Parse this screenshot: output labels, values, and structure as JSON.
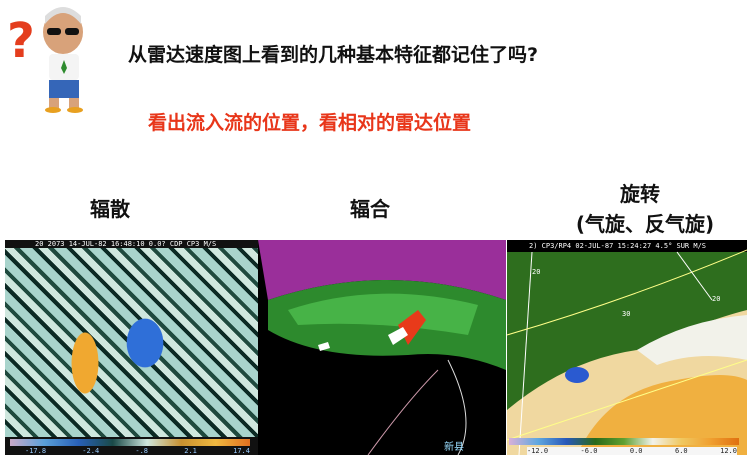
{
  "slide": {
    "title": "从雷达速度图上看到的几种基本特征都记住了吗?",
    "subtitle": "看出流入流的位置，看相对的雷达位置",
    "mascot_icon": "question-mark-character-icon"
  },
  "panels": [
    {
      "label": "辐散",
      "header": "20 2073 14-JUL-82 16:48:10 0.0? CDP CP3 M/S",
      "colorbar_labels": [
        "-17.8",
        "-2.4",
        "-.8",
        "2.1",
        "17.4"
      ]
    },
    {
      "label": "辐合",
      "place_label": "新县"
    },
    {
      "label": "旋转",
      "sublabel": "(气旋、反气旋)",
      "header": "2) CP3/RP4  02-JUL-87 15:24:27 4.5° SUR M/S",
      "range_labels": [
        "20",
        "30",
        "20"
      ],
      "colorbar_labels": [
        "-12.0",
        "-6.0",
        "0.0",
        "6.0",
        "12.0"
      ]
    }
  ],
  "colors": {
    "subtitle": "#e8361a",
    "radar_green": "#2d8a2d",
    "radar_magenta": "#9a2f9a"
  }
}
